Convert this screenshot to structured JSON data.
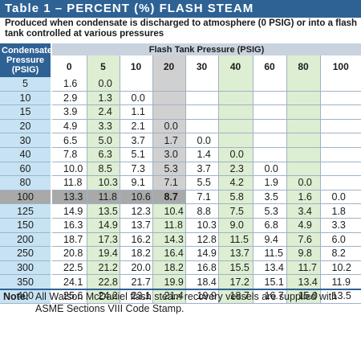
{
  "title": "Table 1 – PERCENT (%) FLASH STEAM",
  "subtitle": "Produced when condensate is discharged to atmosphere (0 PSIG) or into a flash tank controlled at various pressures",
  "header": {
    "row_header": "Condensate Pressure (PSIG)",
    "group_header": "Flash Tank Pressure (PSIG)",
    "columns": [
      "0",
      "5",
      "10",
      "20",
      "30",
      "40",
      "60",
      "80",
      "100"
    ]
  },
  "rows": [
    {
      "label": "5",
      "cells": [
        "1.6",
        "0.0",
        "",
        "",
        "",
        "",
        "",
        "",
        ""
      ]
    },
    {
      "label": "10",
      "cells": [
        "2.9",
        "1.3",
        "0.0",
        "",
        "",
        "",
        "",
        "",
        ""
      ]
    },
    {
      "label": "15",
      "cells": [
        "3.9",
        "2.4",
        "1.1",
        "",
        "",
        "",
        "",
        "",
        ""
      ]
    },
    {
      "label": "20",
      "cells": [
        "4.9",
        "3.3",
        "2.1",
        "0.0",
        "",
        "",
        "",
        "",
        ""
      ]
    },
    {
      "label": "30",
      "cells": [
        "6.5",
        "5.0",
        "3.7",
        "1.7",
        "0.0",
        "",
        "",
        "",
        ""
      ]
    },
    {
      "label": "40",
      "cells": [
        "7.8",
        "6.3",
        "5.1",
        "3.0",
        "1.4",
        "0.0",
        "",
        "",
        ""
      ]
    },
    {
      "label": "60",
      "cells": [
        "10.0",
        "8.5",
        "7.3",
        "5.3",
        "3.7",
        "2.3",
        "0.0",
        "",
        ""
      ]
    },
    {
      "label": "80",
      "cells": [
        "11.8",
        "10.3",
        "9.1",
        "7.1",
        "5.5",
        "4.2",
        "1.9",
        "0.0",
        ""
      ]
    },
    {
      "label": "100",
      "cells": [
        "13.3",
        "11.8",
        "10.6",
        "8.7",
        "7.1",
        "5.8",
        "3.5",
        "1.6",
        "0.0"
      ]
    },
    {
      "label": "125",
      "cells": [
        "14.9",
        "13.5",
        "12.3",
        "10.4",
        "8.8",
        "7.5",
        "5.3",
        "3.4",
        "1.8"
      ]
    },
    {
      "label": "150",
      "cells": [
        "16.3",
        "14.9",
        "13.7",
        "11.8",
        "10.3",
        "9.0",
        "6.8",
        "4.9",
        "3.3"
      ]
    },
    {
      "label": "200",
      "cells": [
        "18.7",
        "17.3",
        "16.2",
        "14.3",
        "12.8",
        "11.5",
        "9.4",
        "7.6",
        "6.0"
      ]
    },
    {
      "label": "250",
      "cells": [
        "20.8",
        "19.4",
        "18.2",
        "16.4",
        "14.9",
        "13.7",
        "11.5",
        "9.8",
        "8.2"
      ]
    },
    {
      "label": "300",
      "cells": [
        "22.5",
        "21.2",
        "20.0",
        "18.2",
        "16.8",
        "15.5",
        "13.4",
        "11.7",
        "10.2"
      ]
    },
    {
      "label": "350",
      "cells": [
        "24.1",
        "22.8",
        "21.7",
        "19.9",
        "18.4",
        "17.2",
        "15.1",
        "13.4",
        "11.9"
      ]
    },
    {
      "label": "400",
      "cells": [
        "25.6",
        "24.2",
        "23.1",
        "21.4",
        "19.9",
        "18.7",
        "16.7",
        "15.0",
        "13.5"
      ]
    }
  ],
  "highlight": {
    "row": "100",
    "column": "20",
    "value": "8.7"
  },
  "note": {
    "label": "Note:",
    "text": "All Watson McDaniel flash steam recovery vessels are supplied with ASME Sections VIII Code Stamp."
  },
  "colors": {
    "header_blue": "#2e6294",
    "label_blue": "#c7e3f3",
    "green": "#ddeed2",
    "highlight_gray": "#a9a9a9"
  }
}
